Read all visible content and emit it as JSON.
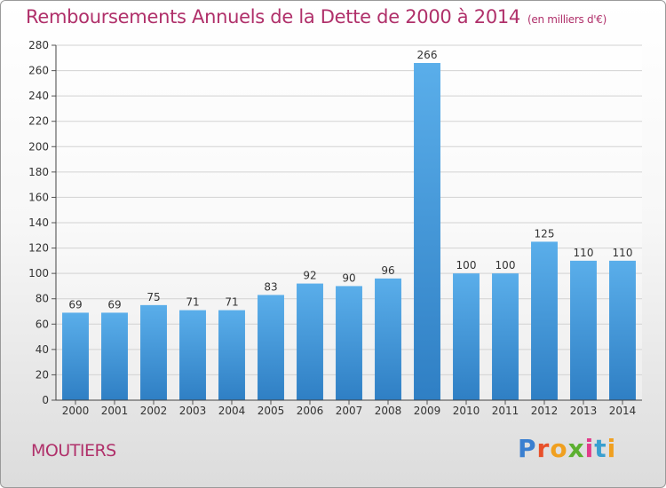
{
  "chart_data": {
    "type": "bar",
    "title": "Remboursements Annuels de la Dette de 2000 à 2014",
    "subtitle": "(en milliers d'€)",
    "categories": [
      "2000",
      "2001",
      "2002",
      "2003",
      "2004",
      "2005",
      "2006",
      "2007",
      "2008",
      "2009",
      "2010",
      "2011",
      "2012",
      "2013",
      "2014"
    ],
    "values": [
      69,
      69,
      75,
      71,
      71,
      83,
      92,
      90,
      96,
      266,
      100,
      100,
      125,
      110,
      110
    ],
    "ylim": [
      0,
      280
    ],
    "yticks": [
      0,
      20,
      40,
      60,
      80,
      100,
      120,
      140,
      160,
      180,
      200,
      220,
      240,
      260,
      280
    ],
    "xlabel": "",
    "ylabel": "",
    "grid": true,
    "bar_color": "#4a9ee0"
  },
  "footer": {
    "commune": "MOUTIERS",
    "logo_text": "Proxiti"
  }
}
